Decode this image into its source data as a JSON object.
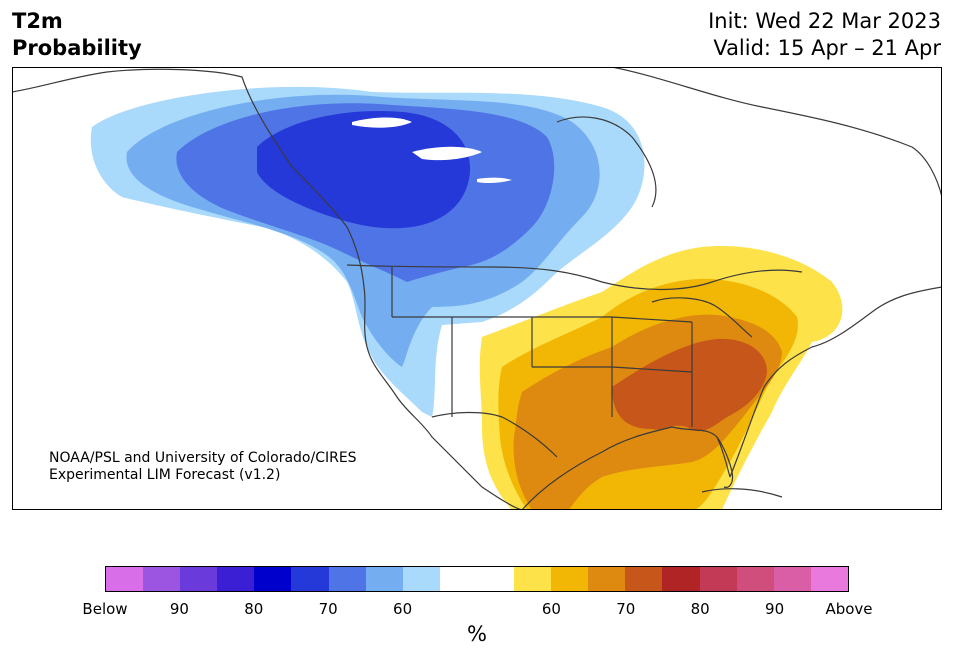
{
  "header": {
    "variable": "T2m",
    "product": "Probability",
    "init": "Init: Wed 22 Mar 2023",
    "valid": "Valid: 15 Apr – 21 Apr"
  },
  "credit": {
    "line1": "NOAA/PSL and University of Colorado/CIRES",
    "line2": "Experimental LIM Forecast (v1.2)"
  },
  "colorbar": {
    "unit": "%",
    "swatches": [
      "#d86fe8",
      "#9b55e0",
      "#6a3adb",
      "#3a1fd4",
      "#0000cc",
      "#2538d8",
      "#4f74e6",
      "#74aef0",
      "#a9d9fb",
      "#ffffff",
      "#ffffff",
      "#fde24a",
      "#f2b705",
      "#de8a10",
      "#c6561a",
      "#b02426",
      "#c23a55",
      "#d04e7c",
      "#da5ea6",
      "#e979dd"
    ],
    "ticks": [
      "Below",
      "90",
      "80",
      "70",
      "60",
      "60",
      "70",
      "80",
      "90",
      "Above"
    ]
  },
  "map": {
    "colors": {
      "cold60": "#a9d9fb",
      "cold65": "#74aef0",
      "cold70": "#4f74e6",
      "cold75": "#2538d8",
      "warm55": "#fde24a",
      "warm60": "#f2b705",
      "warm65": "#de8a10",
      "warm70": "#c6561a",
      "coast": "#3a3a3a"
    }
  }
}
